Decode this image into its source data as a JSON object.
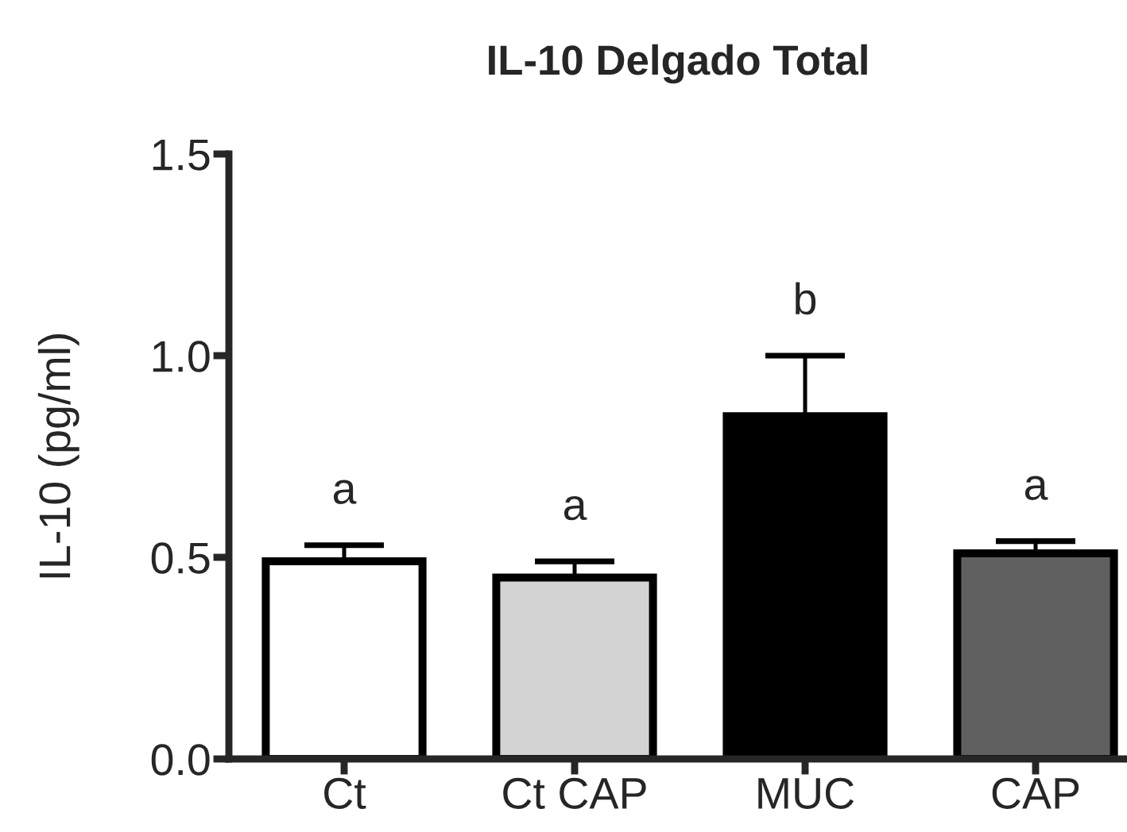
{
  "chart_data": {
    "type": "bar",
    "title": "IL-10 Delgado Total",
    "ylabel": "IL-10 (pg/ml)",
    "categories": [
      "Ct",
      "Ct CAP",
      "MUC",
      "CAP"
    ],
    "values": [
      0.49,
      0.45,
      0.85,
      0.51
    ],
    "colors": [
      "#ffffff",
      "#d3d3d3",
      "#000000",
      "#606060"
    ],
    "errors": [
      [
        0.49,
        0.53
      ],
      [
        0.45,
        0.49
      ],
      [
        0.85,
        1.0
      ],
      [
        0.51,
        0.54
      ]
    ],
    "ylim": [
      0,
      1.5
    ],
    "yticks": [
      {
        "value": 0,
        "label": "0.0"
      },
      0.5,
      {
        "value": 1,
        "label": "1.0"
      },
      1.5
    ],
    "annotations": [
      {
        "text": "a",
        "x": "Ct",
        "y": 0.53
      },
      {
        "text": "a",
        "x": "Ct CAP",
        "y": 0.49
      },
      {
        "text": "b",
        "x": "MUC",
        "y": 1.0
      },
      {
        "text": "a",
        "x": "CAP",
        "y": 0.54
      }
    ],
    "grid": false,
    "legend": false
  }
}
